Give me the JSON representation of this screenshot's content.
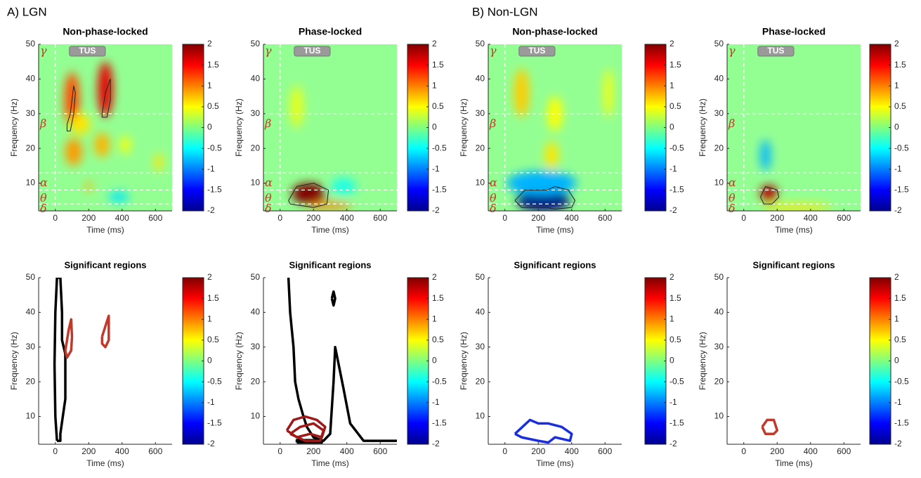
{
  "panel_labels": [
    "A) LGN",
    "B) Non-LGN"
  ],
  "chart_data": [
    {
      "type": "heatmap",
      "title": "Non-phase-locked",
      "xlabel": "Time (ms)",
      "ylabel": "Frequency (Hz)",
      "xlim": [
        -100,
        700
      ],
      "ylim": [
        2,
        50
      ],
      "xticks": [
        0,
        200,
        400,
        600
      ],
      "yticks": [
        10,
        20,
        30,
        40,
        50
      ],
      "clim": [
        -2,
        2
      ],
      "cticks": [
        -2,
        -1.5,
        -1,
        -0.5,
        0,
        0.5,
        1,
        1.5,
        2
      ],
      "baseline_value": 0,
      "annotation": {
        "text": "TUS",
        "time": [
          0,
          300
        ],
        "freq": 48
      },
      "reference_lines": {
        "time": [
          0
        ],
        "freq": [
          30,
          13,
          8,
          4
        ]
      },
      "band_labels": [
        {
          "text": "γ",
          "freq": 48
        },
        {
          "text": "β",
          "freq": 27
        },
        {
          "text": "α",
          "freq": 10
        },
        {
          "text": "θ",
          "freq": 5.5
        },
        {
          "text": "δ",
          "freq": 2.5
        }
      ],
      "blobs": [
        {
          "time": 100,
          "freq": 34,
          "value": 1.2,
          "time_width": 90,
          "freq_width": 16
        },
        {
          "time": 300,
          "freq": 37,
          "value": 1.6,
          "time_width": 90,
          "freq_width": 16
        },
        {
          "time": 110,
          "freq": 19,
          "value": 0.9,
          "time_width": 100,
          "freq_width": 8
        },
        {
          "time": 280,
          "freq": 21,
          "value": 0.8,
          "time_width": 90,
          "freq_width": 7
        },
        {
          "time": 420,
          "freq": 21,
          "value": 0.5,
          "time_width": 60,
          "freq_width": 5
        },
        {
          "time": 620,
          "freq": 16,
          "value": 0.6,
          "time_width": 50,
          "freq_width": 5
        },
        {
          "time": 200,
          "freq": 9,
          "value": 0.8,
          "time_width": 40,
          "freq_width": 3
        },
        {
          "time": 150,
          "freq": 27,
          "value": 0.6,
          "time_width": 120,
          "freq_width": 6
        },
        {
          "time": 380,
          "freq": 6,
          "value": -0.6,
          "time_width": 120,
          "freq_width": 3
        }
      ],
      "contours": [
        {
          "color": "#222222",
          "time": [
            70,
            90,
            110,
            120,
            110,
            90,
            70,
            70
          ],
          "freq": [
            27,
            30,
            38,
            36,
            30,
            25,
            25,
            27
          ]
        },
        {
          "color": "#222222",
          "time": [
            280,
            300,
            330,
            330,
            310,
            280,
            280
          ],
          "freq": [
            30,
            36,
            40,
            34,
            29,
            29,
            30
          ]
        }
      ]
    },
    {
      "type": "heatmap",
      "title": "Phase-locked",
      "xlabel": "Time (ms)",
      "ylabel": "Frequency (Hz)",
      "xlim": [
        -100,
        700
      ],
      "ylim": [
        2,
        50
      ],
      "xticks": [
        0,
        200,
        400,
        600
      ],
      "yticks": [
        10,
        20,
        30,
        40,
        50
      ],
      "clim": [
        -2,
        2
      ],
      "cticks": [
        -2,
        -1.5,
        -1,
        -0.5,
        0,
        0.5,
        1,
        1.5,
        2
      ],
      "baseline_value": 0,
      "annotation": {
        "text": "TUS",
        "time": [
          0,
          300
        ],
        "freq": 48
      },
      "reference_lines": {
        "time": [
          0
        ],
        "freq": [
          30,
          13,
          8,
          4
        ]
      },
      "band_labels": [
        {
          "text": "γ",
          "freq": 48
        },
        {
          "text": "β",
          "freq": 27
        },
        {
          "text": "α",
          "freq": 10
        },
        {
          "text": "θ",
          "freq": 5.5
        },
        {
          "text": "δ",
          "freq": 2.5
        }
      ],
      "blobs": [
        {
          "time": 170,
          "freq": 7,
          "value": 2,
          "time_width": 200,
          "freq_width": 6
        },
        {
          "time": 300,
          "freq": 3.5,
          "value": 1,
          "time_width": 260,
          "freq_width": 2
        },
        {
          "time": 100,
          "freq": 32,
          "value": 0.4,
          "time_width": 80,
          "freq_width": 12
        },
        {
          "time": 380,
          "freq": 9,
          "value": -0.4,
          "time_width": 150,
          "freq_width": 5
        }
      ],
      "contours": [
        {
          "color": "#222222",
          "time": [
            50,
            100,
            200,
            290,
            280,
            200,
            60,
            50
          ],
          "freq": [
            5,
            9,
            10,
            8,
            4,
            3,
            4,
            5
          ]
        }
      ]
    },
    {
      "type": "heatmap",
      "title": "Non-phase-locked",
      "xlabel": "Time (ms)",
      "ylabel": "Frequency (Hz)",
      "xlim": [
        -100,
        700
      ],
      "ylim": [
        2,
        50
      ],
      "xticks": [
        0,
        200,
        400,
        600
      ],
      "yticks": [
        10,
        20,
        30,
        40,
        50
      ],
      "clim": [
        -2,
        2
      ],
      "cticks": [
        -2,
        -1.5,
        -1,
        -0.5,
        0,
        0.5,
        1,
        1.5,
        2
      ],
      "baseline_value": 0,
      "annotation": {
        "text": "TUS",
        "time": [
          0,
          300
        ],
        "freq": 48
      },
      "reference_lines": {
        "time": [
          0
        ],
        "freq": [
          30,
          13,
          8,
          4
        ]
      },
      "band_labels": [
        {
          "text": "γ",
          "freq": 48
        },
        {
          "text": "β",
          "freq": 27
        },
        {
          "text": "α",
          "freq": 10
        },
        {
          "text": "θ",
          "freq": 5.5
        },
        {
          "text": "δ",
          "freq": 2.5
        }
      ],
      "blobs": [
        {
          "time": 230,
          "freq": 5,
          "value": -2,
          "time_width": 320,
          "freq_width": 6
        },
        {
          "time": 220,
          "freq": 10,
          "value": -0.8,
          "time_width": 420,
          "freq_width": 7
        },
        {
          "time": 100,
          "freq": 36,
          "value": 0.7,
          "time_width": 90,
          "freq_width": 14
        },
        {
          "time": 300,
          "freq": 30,
          "value": 0.5,
          "time_width": 90,
          "freq_width": 10
        },
        {
          "time": 280,
          "freq": 18,
          "value": 0.6,
          "time_width": 80,
          "freq_width": 8
        },
        {
          "time": 620,
          "freq": 36,
          "value": 0.5,
          "time_width": 50,
          "freq_width": 14
        }
      ],
      "contours": [
        {
          "color": "#222222",
          "time": [
            60,
            120,
            250,
            300,
            380,
            420,
            400,
            300,
            250,
            100,
            60
          ],
          "freq": [
            5,
            8,
            8,
            9,
            8,
            5,
            3,
            2.5,
            3,
            3,
            5
          ]
        }
      ]
    },
    {
      "type": "heatmap",
      "title": "Phase-locked",
      "xlabel": "Time (ms)",
      "ylabel": "Frequency (Hz)",
      "xlim": [
        -100,
        700
      ],
      "ylim": [
        2,
        50
      ],
      "xticks": [
        0,
        200,
        400,
        600
      ],
      "yticks": [
        10,
        20,
        30,
        40,
        50
      ],
      "clim": [
        -2,
        2
      ],
      "cticks": [
        -2,
        -1.5,
        -1,
        -0.5,
        0,
        0.5,
        1,
        1.5,
        2
      ],
      "baseline_value": 0,
      "annotation": {
        "text": "TUS",
        "time": [
          0,
          300
        ],
        "freq": 48
      },
      "reference_lines": {
        "time": [
          0
        ],
        "freq": [
          30,
          13,
          8,
          4
        ]
      },
      "band_labels": [
        {
          "text": "γ",
          "freq": 48
        },
        {
          "text": "β",
          "freq": 27
        },
        {
          "text": "α",
          "freq": 10
        },
        {
          "text": "θ",
          "freq": 5.5
        },
        {
          "text": "δ",
          "freq": 2.5
        }
      ],
      "blobs": [
        {
          "time": 150,
          "freq": 7,
          "value": 1.8,
          "time_width": 100,
          "freq_width": 5
        },
        {
          "time": 130,
          "freq": 18,
          "value": -0.8,
          "time_width": 60,
          "freq_width": 9
        },
        {
          "time": 320,
          "freq": 3,
          "value": 0.6,
          "time_width": 420,
          "freq_width": 2
        }
      ],
      "contours": [
        {
          "color": "#222222",
          "time": [
            100,
            130,
            200,
            210,
            170,
            120,
            100
          ],
          "freq": [
            6,
            9,
            8,
            6,
            4,
            4,
            6
          ]
        }
      ]
    },
    {
      "type": "contour",
      "title": "Significant regions",
      "xlabel": "Time (ms)",
      "ylabel": "Frequency (Hz)",
      "xlim": [
        -100,
        700
      ],
      "ylim": [
        2,
        50
      ],
      "xticks": [
        0,
        200,
        400,
        600
      ],
      "yticks": [
        10,
        20,
        30,
        40,
        50
      ],
      "clim": [
        -2,
        2
      ],
      "cticks": [
        -2,
        -1.5,
        -1,
        -0.5,
        0,
        0.5,
        1,
        1.5,
        2
      ],
      "contours": [
        {
          "color": "#000000",
          "time": [
            10,
            0,
            -5,
            0,
            10,
            30,
            40,
            40,
            60,
            60,
            45,
            30,
            30,
            20,
            10
          ],
          "freq": [
            3,
            10,
            25,
            40,
            50,
            50,
            40,
            32,
            28,
            15,
            10,
            5,
            3,
            3,
            3
          ]
        },
        {
          "color": "#c0392b",
          "time": [
            60,
            80,
            95,
            100,
            95,
            70,
            60
          ],
          "freq": [
            29,
            35,
            38,
            33,
            29,
            27,
            29
          ]
        },
        {
          "color": "#c0392b",
          "time": [
            280,
            300,
            320,
            320,
            300,
            280,
            280
          ],
          "freq": [
            33,
            36,
            39,
            32,
            30,
            31,
            33
          ]
        }
      ]
    },
    {
      "type": "contour",
      "title": "Significant regions",
      "xlabel": "Time (ms)",
      "ylabel": "Frequency (Hz)",
      "xlim": [
        -100,
        700
      ],
      "ylim": [
        2,
        50
      ],
      "xticks": [
        0,
        200,
        400,
        600
      ],
      "yticks": [
        10,
        20,
        30,
        40,
        50
      ],
      "clim": [
        -2,
        2
      ],
      "cticks": [
        -2,
        -1.5,
        -1,
        -0.5,
        0,
        0.5,
        1,
        1.5,
        2
      ],
      "contours": [
        {
          "color": "#000000",
          "time": [
            50,
            60,
            80,
            90,
            110,
            140,
            160,
            200,
            260,
            300,
            320,
            330,
            380,
            420,
            500,
            700
          ],
          "freq": [
            50,
            40,
            30,
            20,
            15,
            10,
            7,
            4,
            3,
            5,
            20,
            30,
            18,
            8,
            3,
            3
          ]
        },
        {
          "color": "#000000",
          "time": [
            310,
            320,
            330,
            320,
            310
          ],
          "freq": [
            44,
            46,
            44,
            42,
            44
          ]
        },
        {
          "color": "#000000",
          "time": [
            100,
            250,
            250,
            100,
            100
          ],
          "freq": [
            2.5,
            2.5,
            3.2,
            3.2,
            2.5
          ]
        },
        {
          "color": "#a01818",
          "time": [
            40,
            80,
            150,
            220,
            270,
            250,
            180,
            100,
            40
          ],
          "freq": [
            6,
            9,
            10,
            9,
            7,
            4,
            5,
            4,
            6
          ]
        },
        {
          "color": "#a01818",
          "time": [
            60,
            120,
            200,
            260,
            240,
            150,
            60
          ],
          "freq": [
            5,
            7,
            8,
            6,
            3,
            3,
            5
          ]
        }
      ]
    },
    {
      "type": "contour",
      "title": "Significant regions",
      "xlabel": "Time (ms)",
      "ylabel": "Frequency (Hz)",
      "xlim": [
        -100,
        700
      ],
      "ylim": [
        2,
        50
      ],
      "xticks": [
        0,
        200,
        400,
        600
      ],
      "yticks": [
        10,
        20,
        30,
        40,
        50
      ],
      "clim": [
        -2,
        2
      ],
      "cticks": [
        -2,
        -1.5,
        -1,
        -0.5,
        0,
        0.5,
        1,
        1.5,
        2
      ],
      "contours": [
        {
          "color": "#1a2ee0",
          "time": [
            60,
            150,
            200,
            260,
            340,
            400,
            390,
            300,
            260,
            200,
            100,
            60
          ],
          "freq": [
            5,
            9,
            8,
            8,
            7,
            5,
            3,
            4,
            2.5,
            3,
            4,
            5
          ]
        }
      ]
    },
    {
      "type": "contour",
      "title": "Significant regions",
      "xlabel": "Time (ms)",
      "ylabel": "Frequency (Hz)",
      "xlim": [
        -100,
        700
      ],
      "ylim": [
        2,
        50
      ],
      "xticks": [
        0,
        200,
        400,
        600
      ],
      "yticks": [
        10,
        20,
        30,
        40,
        50
      ],
      "clim": [
        -2,
        2
      ],
      "cticks": [
        -2,
        -1.5,
        -1,
        -0.5,
        0,
        0.5,
        1,
        1.5,
        2
      ],
      "contours": [
        {
          "color": "#c0392b",
          "time": [
            110,
            140,
            180,
            200,
            180,
            130,
            110
          ],
          "freq": [
            7,
            9,
            9,
            6,
            5,
            5,
            7
          ]
        }
      ]
    }
  ]
}
